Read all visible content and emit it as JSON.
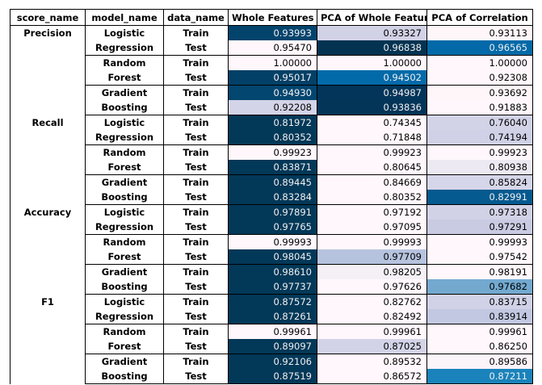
{
  "headers": [
    "score_name",
    "model_name",
    "data_name",
    "Whole Features",
    "PCA of Whole Features",
    "PCA of Correlation"
  ],
  "sections": [
    {
      "score": "Precision",
      "groups": [
        {
          "model": [
            "Logistic",
            "Regression"
          ],
          "rows": [
            {
              "split": "Train",
              "values": [
                "0.93993",
                "0.93327",
                "0.93113"
              ],
              "colors": [
                "#03446d",
                "#d2d2e7",
                "#fff6fa"
              ]
            },
            {
              "split": "Test",
              "values": [
                "0.95470",
                "0.96838",
                "0.96565"
              ],
              "colors": [
                "#fff7fb",
                "#033351",
                "#0369a8"
              ]
            }
          ]
        },
        {
          "model": [
            "Random",
            "Forest"
          ],
          "rows": [
            {
              "split": "Train",
              "values": [
                "1.00000",
                "1.00000",
                "1.00000"
              ],
              "colors": [
                "#fff7fb",
                "#fff7fb",
                "#fff7fb"
              ]
            },
            {
              "split": "Test",
              "values": [
                "0.95017",
                "0.94502",
                "0.92308"
              ],
              "colors": [
                "#034067",
                "#036aa9",
                "#fff7fb"
              ]
            }
          ]
        },
        {
          "model": [
            "Gradient",
            "Boosting"
          ],
          "rows": [
            {
              "split": "Train",
              "values": [
                "0.94930",
                "0.94987",
                "0.93692"
              ],
              "colors": [
                "#03466f",
                "#023559",
                "#fff6fa"
              ]
            },
            {
              "split": "Test",
              "values": [
                "0.92208",
                "0.93836",
                "0.91883"
              ],
              "colors": [
                "#d4d4e8",
                "#023558",
                "#fff7fb"
              ]
            }
          ]
        }
      ]
    },
    {
      "score": "Recall",
      "groups": [
        {
          "model": [
            "Logistic",
            "Regression"
          ],
          "rows": [
            {
              "split": "Train",
              "values": [
                "0.81972",
                "0.74345",
                "0.76040"
              ],
              "colors": [
                "#023858",
                "#fff7fb",
                "#d3d3e8"
              ]
            },
            {
              "split": "Test",
              "values": [
                "0.80352",
                "0.71848",
                "0.74194"
              ],
              "colors": [
                "#023858",
                "#fff7fb",
                "#d0d0e6"
              ]
            }
          ]
        },
        {
          "model": [
            "Random",
            "Forest"
          ],
          "rows": [
            {
              "split": "Train",
              "values": [
                "0.99923",
                "0.99923",
                "0.99923"
              ],
              "colors": [
                "#fff7fb",
                "#fff7fb",
                "#fff7fb"
              ]
            },
            {
              "split": "Test",
              "values": [
                "0.83871",
                "0.80645",
                "0.80938"
              ],
              "colors": [
                "#023858",
                "#fff7fb",
                "#ede9f3"
              ]
            }
          ]
        },
        {
          "model": [
            "Gradient",
            "Boosting"
          ],
          "rows": [
            {
              "split": "Train",
              "values": [
                "0.89445",
                "0.84669",
                "0.85824"
              ],
              "colors": [
                "#023858",
                "#fff7fb",
                "#d6d6ea"
              ]
            },
            {
              "split": "Test",
              "values": [
                "0.83284",
                "0.80352",
                "0.82991"
              ],
              "colors": [
                "#023858",
                "#fff7fb",
                "#055a8f"
              ]
            }
          ]
        }
      ]
    },
    {
      "score": "Accuracy",
      "groups": [
        {
          "model": [
            "Logistic",
            "Regression"
          ],
          "rows": [
            {
              "split": "Train",
              "values": [
                "0.97891",
                "0.97192",
                "0.97318"
              ],
              "colors": [
                "#023858",
                "#fff7fb",
                "#d2d2e7"
              ]
            },
            {
              "split": "Test",
              "values": [
                "0.97765",
                "0.97095",
                "0.97291"
              ],
              "colors": [
                "#023858",
                "#fff7fb",
                "#c9cbe3"
              ]
            }
          ]
        },
        {
          "model": [
            "Random",
            "Forest"
          ],
          "rows": [
            {
              "split": "Train",
              "values": [
                "0.99993",
                "0.99993",
                "0.99993"
              ],
              "colors": [
                "#fff7fb",
                "#fff7fb",
                "#fff7fb"
              ]
            },
            {
              "split": "Test",
              "values": [
                "0.98045",
                "0.97709",
                "0.97542"
              ],
              "colors": [
                "#023858",
                "#b6c3de",
                "#fff7fb"
              ]
            }
          ]
        },
        {
          "model": [
            "Gradient",
            "Boosting"
          ],
          "rows": [
            {
              "split": "Train",
              "values": [
                "0.98610",
                "0.98205",
                "0.98191"
              ],
              "colors": [
                "#023858",
                "#f4f0f6",
                "#fff7fb"
              ]
            },
            {
              "split": "Test",
              "values": [
                "0.97737",
                "0.97626",
                "0.97682"
              ],
              "colors": [
                "#023858",
                "#fff7fb",
                "#73a9cf"
              ]
            }
          ]
        }
      ]
    },
    {
      "score": "F1",
      "groups": [
        {
          "model": [
            "Logistic",
            "Regression"
          ],
          "rows": [
            {
              "split": "Train",
              "values": [
                "0.87572",
                "0.82762",
                "0.83715"
              ],
              "colors": [
                "#023858",
                "#fff7fb",
                "#d1d2e7"
              ]
            },
            {
              "split": "Test",
              "values": [
                "0.87261",
                "0.82492",
                "0.83914"
              ],
              "colors": [
                "#023858",
                "#fff7fb",
                "#c2c8e1"
              ]
            }
          ]
        },
        {
          "model": [
            "Random",
            "Forest"
          ],
          "rows": [
            {
              "split": "Train",
              "values": [
                "0.99961",
                "0.99961",
                "0.99961"
              ],
              "colors": [
                "#fff7fb",
                "#fff7fb",
                "#fff7fb"
              ]
            },
            {
              "split": "Test",
              "values": [
                "0.89097",
                "0.87025",
                "0.86250"
              ],
              "colors": [
                "#023858",
                "#d3d3e8",
                "#fff7fb"
              ]
            }
          ]
        },
        {
          "model": [
            "Gradient",
            "Boosting"
          ],
          "rows": [
            {
              "split": "Train",
              "values": [
                "0.92106",
                "0.89532",
                "0.89586"
              ],
              "colors": [
                "#023858",
                "#fff7fb",
                "#fbf4f9"
              ]
            },
            {
              "split": "Test",
              "values": [
                "0.87519",
                "0.86572",
                "0.87211"
              ],
              "colors": [
                "#023858",
                "#fff7fb",
                "#1a83bb"
              ]
            }
          ]
        }
      ]
    }
  ]
}
